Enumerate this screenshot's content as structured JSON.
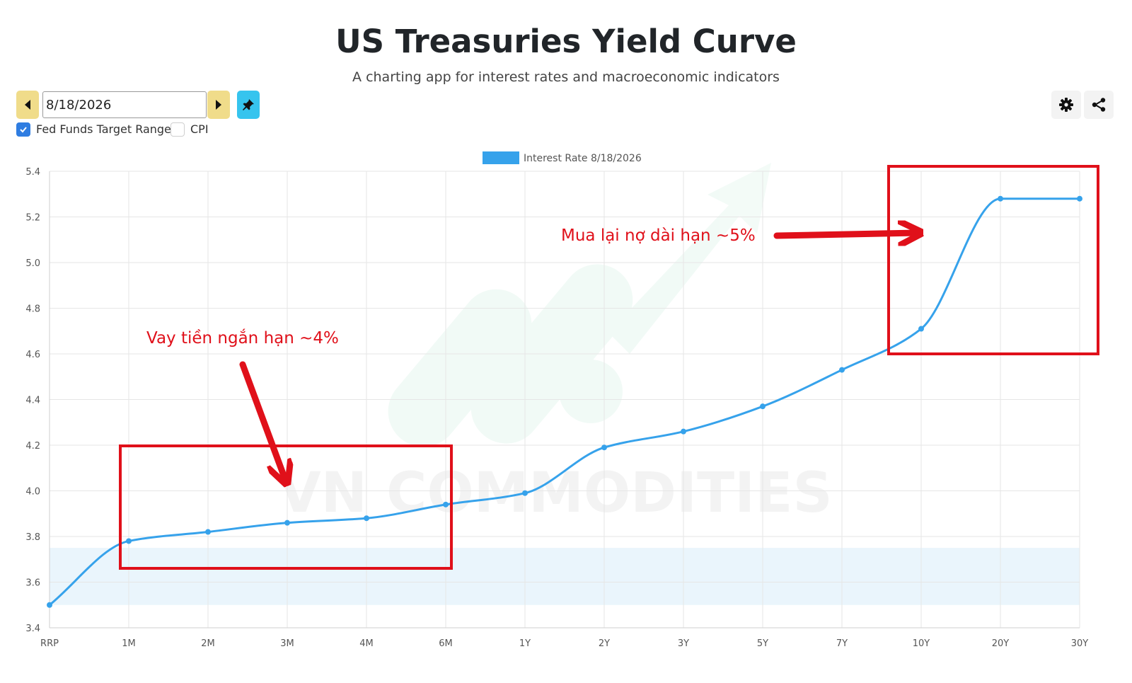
{
  "header": {
    "title": "US Treasuries Yield Curve",
    "subtitle": "A charting app for interest rates and macroeconomic indicators"
  },
  "controls": {
    "date_value": "8/18/2026",
    "checkboxes": [
      {
        "label": "Fed Funds Target Range",
        "checked": true
      },
      {
        "label": "CPI",
        "checked": false
      }
    ],
    "icons": [
      "caret-left-icon",
      "caret-right-icon",
      "pin-icon",
      "gear-icon",
      "share-icon"
    ]
  },
  "chart_data": {
    "type": "line",
    "categories": [
      "RRP",
      "1M",
      "2M",
      "3M",
      "4M",
      "6M",
      "1Y",
      "2Y",
      "3Y",
      "5Y",
      "7Y",
      "10Y",
      "20Y",
      "30Y"
    ],
    "series": [
      {
        "name": "Interest Rate 8/18/2026",
        "values": [
          3.5,
          3.78,
          3.82,
          3.86,
          3.88,
          3.94,
          3.99,
          4.19,
          4.26,
          4.37,
          4.53,
          4.71,
          5.28,
          5.28
        ]
      }
    ],
    "ylim": [
      3.4,
      5.4
    ],
    "yticks": [
      "3.4",
      "3.6",
      "3.8",
      "4.0",
      "4.2",
      "4.4",
      "4.6",
      "4.8",
      "5.0",
      "5.2",
      "5.4"
    ],
    "fed_funds_band": [
      3.5,
      3.75
    ],
    "grid": true,
    "legend_position": "top-center",
    "line_color": "#36a2eb",
    "band_color": "#eaf5fc",
    "annotations": [
      {
        "text": "Vay tiền ngắn hạn ~4%",
        "color": "#e0101a"
      },
      {
        "text": "Mua lại nợ dài hạn ~5%",
        "color": "#e0101a"
      }
    ],
    "watermark": "VN COMMODITIES"
  }
}
